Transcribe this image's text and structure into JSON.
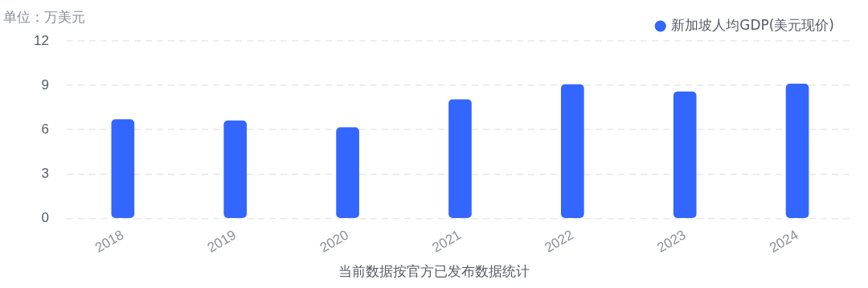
{
  "chart_data": {
    "type": "bar",
    "ylabel": "单位：万美元",
    "categories": [
      "2018",
      "2019",
      "2020",
      "2021",
      "2022",
      "2023",
      "2024"
    ],
    "series": [
      {
        "name": "新加坡人均GDP(美元现价)",
        "color": "#3366ff",
        "values": [
          6.69,
          6.6,
          6.14,
          8.04,
          9.05,
          8.57,
          9.1
        ]
      }
    ],
    "ylim": [
      0,
      12
    ],
    "yticks": [
      0,
      3,
      6,
      9,
      12
    ],
    "grid": "y",
    "legend": "top right",
    "annotations": [
      "当前数据按官方已发布数据统计"
    ]
  }
}
